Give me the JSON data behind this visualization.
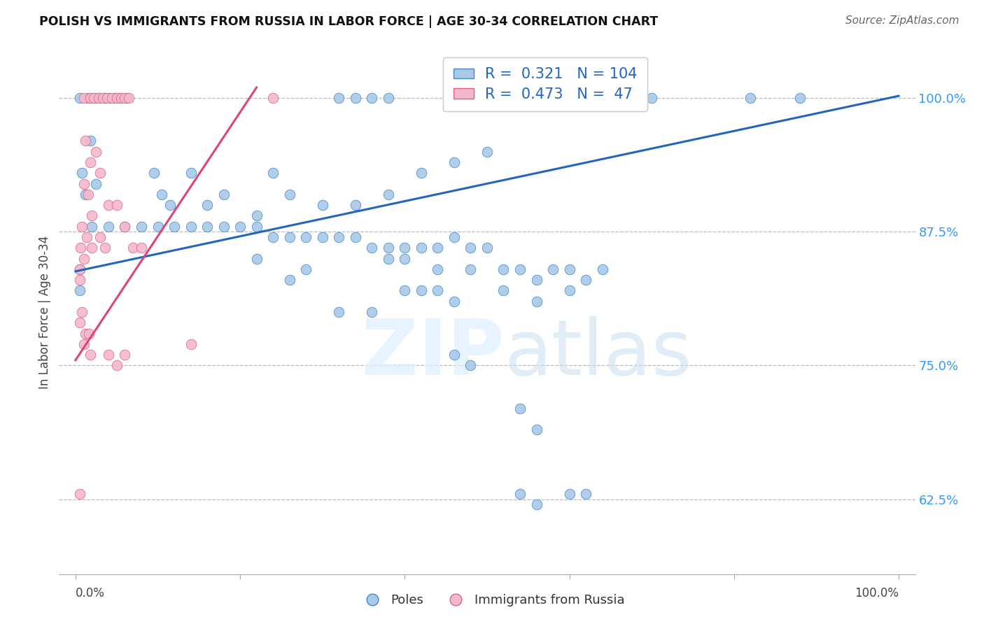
{
  "title": "POLISH VS IMMIGRANTS FROM RUSSIA IN LABOR FORCE | AGE 30-34 CORRELATION CHART",
  "source": "Source: ZipAtlas.com",
  "ylabel": "In Labor Force | Age 30-34",
  "blue_R": 0.321,
  "blue_N": 104,
  "pink_R": 0.473,
  "pink_N": 47,
  "ytick_labels": [
    "62.5%",
    "75.0%",
    "87.5%",
    "100.0%"
  ],
  "ytick_values": [
    0.625,
    0.75,
    0.875,
    1.0
  ],
  "blue_color": "#a8c8e8",
  "pink_color": "#f4b8cc",
  "blue_edge_color": "#4488cc",
  "pink_edge_color": "#e06080",
  "blue_line_color": "#2266bb",
  "pink_line_color": "#dd4477",
  "legend_text_color": "#2266bb",
  "ytick_color": "#3399ff",
  "blue_scatter": [
    [
      0.005,
      1.0
    ],
    [
      0.015,
      1.0
    ],
    [
      0.022,
      1.0
    ],
    [
      0.028,
      1.0
    ],
    [
      0.036,
      1.0
    ],
    [
      0.042,
      1.0
    ],
    [
      0.048,
      1.0
    ],
    [
      0.054,
      1.0
    ],
    [
      0.062,
      1.0
    ],
    [
      0.32,
      1.0
    ],
    [
      0.34,
      1.0
    ],
    [
      0.36,
      1.0
    ],
    [
      0.38,
      1.0
    ],
    [
      0.6,
      1.0
    ],
    [
      0.7,
      1.0
    ],
    [
      0.82,
      1.0
    ],
    [
      0.88,
      1.0
    ],
    [
      0.018,
      0.96
    ],
    [
      0.008,
      0.93
    ],
    [
      0.025,
      0.92
    ],
    [
      0.012,
      0.91
    ],
    [
      0.095,
      0.93
    ],
    [
      0.105,
      0.91
    ],
    [
      0.115,
      0.9
    ],
    [
      0.14,
      0.93
    ],
    [
      0.16,
      0.9
    ],
    [
      0.18,
      0.91
    ],
    [
      0.22,
      0.89
    ],
    [
      0.24,
      0.93
    ],
    [
      0.26,
      0.91
    ],
    [
      0.3,
      0.9
    ],
    [
      0.34,
      0.9
    ],
    [
      0.38,
      0.91
    ],
    [
      0.42,
      0.93
    ],
    [
      0.46,
      0.94
    ],
    [
      0.5,
      0.95
    ],
    [
      0.02,
      0.88
    ],
    [
      0.04,
      0.88
    ],
    [
      0.06,
      0.88
    ],
    [
      0.08,
      0.88
    ],
    [
      0.1,
      0.88
    ],
    [
      0.12,
      0.88
    ],
    [
      0.14,
      0.88
    ],
    [
      0.16,
      0.88
    ],
    [
      0.18,
      0.88
    ],
    [
      0.2,
      0.88
    ],
    [
      0.22,
      0.88
    ],
    [
      0.24,
      0.87
    ],
    [
      0.26,
      0.87
    ],
    [
      0.28,
      0.87
    ],
    [
      0.3,
      0.87
    ],
    [
      0.32,
      0.87
    ],
    [
      0.34,
      0.87
    ],
    [
      0.36,
      0.86
    ],
    [
      0.38,
      0.86
    ],
    [
      0.4,
      0.86
    ],
    [
      0.42,
      0.86
    ],
    [
      0.44,
      0.86
    ],
    [
      0.46,
      0.87
    ],
    [
      0.48,
      0.86
    ],
    [
      0.5,
      0.86
    ],
    [
      0.38,
      0.85
    ],
    [
      0.4,
      0.85
    ],
    [
      0.44,
      0.84
    ],
    [
      0.48,
      0.84
    ],
    [
      0.52,
      0.84
    ],
    [
      0.54,
      0.84
    ],
    [
      0.56,
      0.83
    ],
    [
      0.58,
      0.84
    ],
    [
      0.6,
      0.84
    ],
    [
      0.62,
      0.83
    ],
    [
      0.64,
      0.84
    ],
    [
      0.42,
      0.82
    ],
    [
      0.44,
      0.82
    ],
    [
      0.52,
      0.82
    ],
    [
      0.56,
      0.81
    ],
    [
      0.6,
      0.82
    ],
    [
      0.32,
      0.8
    ],
    [
      0.36,
      0.8
    ],
    [
      0.46,
      0.81
    ],
    [
      0.28,
      0.84
    ],
    [
      0.22,
      0.85
    ],
    [
      0.26,
      0.83
    ],
    [
      0.4,
      0.82
    ],
    [
      0.46,
      0.76
    ],
    [
      0.48,
      0.75
    ],
    [
      0.54,
      0.71
    ],
    [
      0.56,
      0.69
    ],
    [
      0.54,
      0.63
    ],
    [
      0.56,
      0.62
    ],
    [
      0.6,
      0.63
    ],
    [
      0.62,
      0.63
    ],
    [
      0.005,
      0.84
    ],
    [
      0.005,
      0.82
    ]
  ],
  "pink_scatter": [
    [
      0.01,
      1.0
    ],
    [
      0.018,
      1.0
    ],
    [
      0.022,
      1.0
    ],
    [
      0.028,
      1.0
    ],
    [
      0.033,
      1.0
    ],
    [
      0.038,
      1.0
    ],
    [
      0.044,
      1.0
    ],
    [
      0.05,
      1.0
    ],
    [
      0.055,
      1.0
    ],
    [
      0.06,
      1.0
    ],
    [
      0.065,
      1.0
    ],
    [
      0.24,
      1.0
    ],
    [
      0.025,
      0.95
    ],
    [
      0.03,
      0.93
    ],
    [
      0.015,
      0.91
    ],
    [
      0.02,
      0.89
    ],
    [
      0.012,
      0.96
    ],
    [
      0.018,
      0.94
    ],
    [
      0.01,
      0.92
    ],
    [
      0.04,
      0.9
    ],
    [
      0.05,
      0.9
    ],
    [
      0.06,
      0.88
    ],
    [
      0.008,
      0.88
    ],
    [
      0.014,
      0.87
    ],
    [
      0.006,
      0.86
    ],
    [
      0.02,
      0.86
    ],
    [
      0.03,
      0.87
    ],
    [
      0.036,
      0.86
    ],
    [
      0.01,
      0.85
    ],
    [
      0.005,
      0.84
    ],
    [
      0.005,
      0.83
    ],
    [
      0.07,
      0.86
    ],
    [
      0.08,
      0.86
    ],
    [
      0.008,
      0.8
    ],
    [
      0.012,
      0.78
    ],
    [
      0.018,
      0.76
    ],
    [
      0.016,
      0.78
    ],
    [
      0.04,
      0.76
    ],
    [
      0.05,
      0.75
    ],
    [
      0.06,
      0.76
    ],
    [
      0.005,
      0.79
    ],
    [
      0.01,
      0.77
    ],
    [
      0.14,
      0.77
    ],
    [
      0.005,
      0.63
    ]
  ],
  "blue_trend_x": [
    0.0,
    1.0
  ],
  "blue_trend_y": [
    0.838,
    1.002
  ],
  "pink_trend_x": [
    0.0,
    0.22
  ],
  "pink_trend_y": [
    0.755,
    1.01
  ],
  "xlim": [
    -0.02,
    1.02
  ],
  "ylim": [
    0.555,
    1.045
  ]
}
